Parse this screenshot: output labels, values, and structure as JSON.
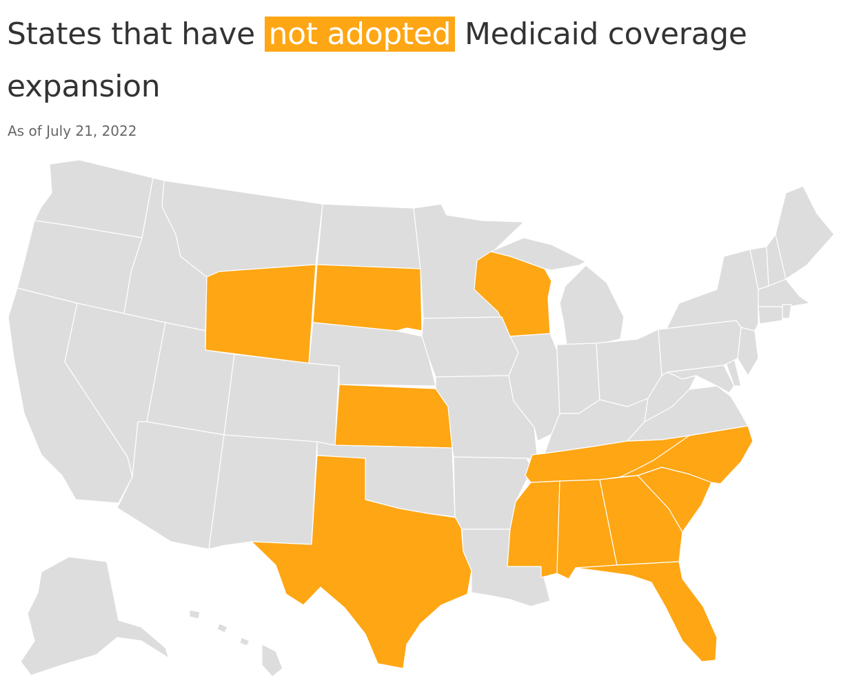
{
  "header": {
    "title_before": "States that have ",
    "title_highlight": "not adopted",
    "title_after": " Medicaid coverage expansion",
    "subtitle": "As of July 21, 2022"
  },
  "colors": {
    "not_adopted": "#FEA614",
    "other": "#DDDDDD",
    "border": "#FFFFFF",
    "title_text": "#333333",
    "subtitle_text": "#666666"
  },
  "states_not_adopted": [
    "WY",
    "SD",
    "WI",
    "KS",
    "TX",
    "TN",
    "MS",
    "AL",
    "GA",
    "FL",
    "SC",
    "NC"
  ]
}
